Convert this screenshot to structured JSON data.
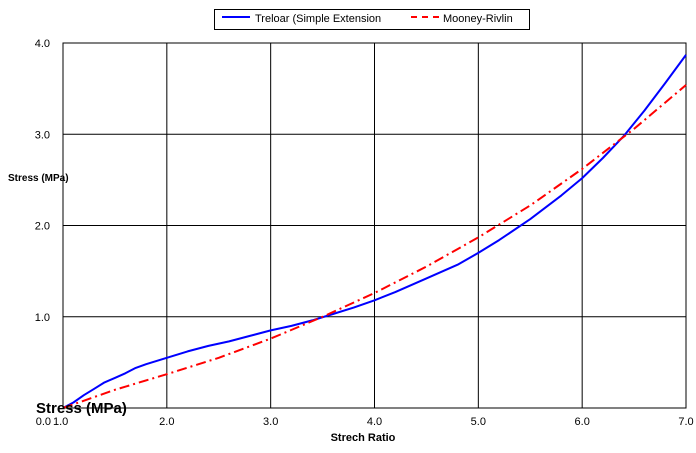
{
  "chart_data": {
    "type": "line",
    "xlabel": "Strech Ratio",
    "ylabel": "Stress (MPa)",
    "ylabel_large": "Stress (MPa)",
    "xlim": [
      1.0,
      7.0
    ],
    "ylim": [
      0.0,
      4.0
    ],
    "xticks": [
      "1.0",
      "2.0",
      "3.0",
      "4.0",
      "5.0",
      "6.0",
      "7.0"
    ],
    "yticks": [
      "0.0",
      "1.0",
      "2.0",
      "3.0",
      "4.0"
    ],
    "xtick_values": [
      1,
      2,
      3,
      4,
      5,
      6,
      7
    ],
    "ytick_values": [
      0,
      1,
      2,
      3,
      4
    ],
    "grid": true,
    "legend_position": "top",
    "series": [
      {
        "name": "Treloar (Simple Extension",
        "color": "#0000ff",
        "style": "solid",
        "x": [
          1.0,
          1.1,
          1.2,
          1.3,
          1.4,
          1.5,
          1.6,
          1.7,
          1.8,
          2.0,
          2.2,
          2.4,
          2.6,
          2.8,
          3.0,
          3.2,
          3.4,
          3.6,
          3.8,
          4.0,
          4.2,
          4.5,
          4.8,
          5.0,
          5.2,
          5.5,
          5.8,
          6.0,
          6.2,
          6.4,
          6.6,
          6.8,
          7.0
        ],
        "y": [
          0.0,
          0.06,
          0.14,
          0.21,
          0.28,
          0.33,
          0.38,
          0.44,
          0.48,
          0.55,
          0.62,
          0.68,
          0.73,
          0.79,
          0.85,
          0.9,
          0.96,
          1.03,
          1.1,
          1.18,
          1.27,
          1.42,
          1.57,
          1.7,
          1.84,
          2.07,
          2.33,
          2.52,
          2.74,
          2.98,
          3.26,
          3.56,
          3.87
        ]
      },
      {
        "name": "Mooney-Rivlin",
        "color": "#ff0000",
        "style": "dash-dot",
        "x": [
          1.0,
          1.5,
          2.0,
          2.5,
          3.0,
          3.5,
          4.0,
          4.5,
          5.0,
          5.5,
          6.0,
          6.5,
          7.0
        ],
        "y": [
          0.0,
          0.2,
          0.37,
          0.55,
          0.76,
          1.0,
          1.26,
          1.55,
          1.87,
          2.22,
          2.62,
          3.06,
          3.54
        ]
      }
    ]
  }
}
